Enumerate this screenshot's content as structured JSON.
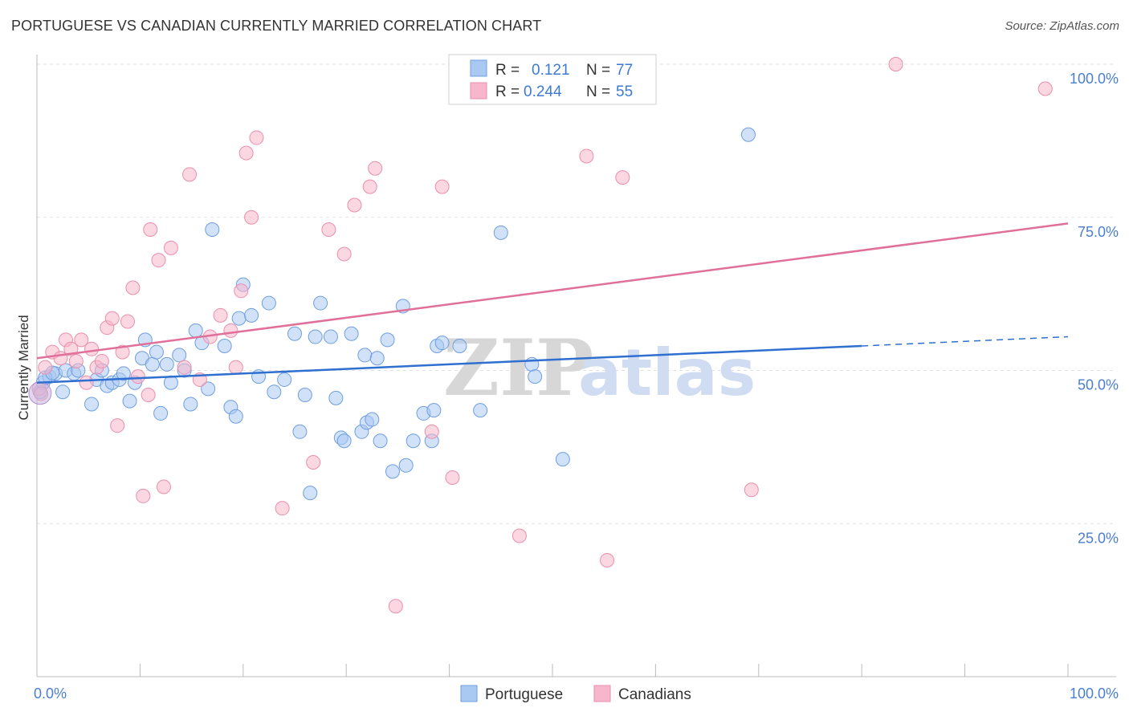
{
  "chart_data": {
    "type": "scatter",
    "title": "PORTUGUESE VS CANADIAN CURRENTLY MARRIED CORRELATION CHART",
    "source": "Source: ZipAtlas.com",
    "ylabel": "Currently Married",
    "xlabel": "",
    "xlim": [
      0,
      100
    ],
    "ylim": [
      0,
      100
    ],
    "x_tick_labels": [
      "0.0%",
      "100.0%"
    ],
    "y_tick_labels": [
      "25.0%",
      "50.0%",
      "75.0%",
      "100.0%"
    ],
    "y_ticks": [
      25,
      50,
      75,
      100
    ],
    "grid": true,
    "watermark": {
      "zip": "ZIP",
      "atlas": "atlas"
    },
    "legend": {
      "rows": [
        {
          "r_label": "R =",
          "r_value": "0.121",
          "n_label": "N =",
          "n_value": "77",
          "color": "#a9c8f2"
        },
        {
          "r_label": "R =",
          "r_value": "0.244",
          "n_label": "N =",
          "n_value": "55",
          "color": "#f7b6cb"
        }
      ]
    },
    "series": [
      {
        "name": "Portuguese",
        "color": "#a9c8f2",
        "edge": "#6f9fe0",
        "trend": {
          "x": [
            0,
            80
          ],
          "y": [
            48.0,
            54.0
          ],
          "dash_to": [
            100,
            55.5
          ],
          "color": "#2f6fd0"
        },
        "points": [
          [
            0.3,
            46.5
          ],
          [
            0.6,
            48
          ],
          [
            1.2,
            49
          ],
          [
            1.8,
            49.5
          ],
          [
            2.5,
            46.5
          ],
          [
            2.8,
            50
          ],
          [
            3.6,
            49.5
          ],
          [
            4,
            50
          ],
          [
            5.3,
            44.5
          ],
          [
            5.8,
            48.5
          ],
          [
            6.3,
            50
          ],
          [
            6.8,
            47.5
          ],
          [
            7.3,
            48
          ],
          [
            8,
            48.5
          ],
          [
            8.4,
            49.5
          ],
          [
            9,
            45
          ],
          [
            9.5,
            48
          ],
          [
            10.2,
            52
          ],
          [
            10.5,
            55
          ],
          [
            11.2,
            51
          ],
          [
            11.6,
            53
          ],
          [
            12,
            43
          ],
          [
            12.6,
            51
          ],
          [
            13,
            48
          ],
          [
            13.8,
            52.5
          ],
          [
            14.3,
            50
          ],
          [
            14.9,
            44.5
          ],
          [
            15.4,
            56.5
          ],
          [
            16,
            54.5
          ],
          [
            16.6,
            47
          ],
          [
            17,
            73
          ],
          [
            18.2,
            54
          ],
          [
            18.8,
            44
          ],
          [
            19.3,
            42.5
          ],
          [
            19.6,
            58.5
          ],
          [
            20,
            64
          ],
          [
            20.8,
            59
          ],
          [
            21.5,
            49
          ],
          [
            22.5,
            61
          ],
          [
            23,
            46.5
          ],
          [
            24,
            48.5
          ],
          [
            25,
            56
          ],
          [
            25.5,
            40
          ],
          [
            26,
            46
          ],
          [
            27,
            55.5
          ],
          [
            27.5,
            61
          ],
          [
            28.5,
            55.5
          ],
          [
            29,
            45.5
          ],
          [
            29.5,
            39
          ],
          [
            29.8,
            38.5
          ],
          [
            30.5,
            56
          ],
          [
            31.5,
            40
          ],
          [
            31.8,
            52.5
          ],
          [
            32,
            41.5
          ],
          [
            32.5,
            42
          ],
          [
            33,
            52
          ],
          [
            33.3,
            38.5
          ],
          [
            34,
            55
          ],
          [
            34.5,
            33.5
          ],
          [
            35.5,
            60.5
          ],
          [
            35.8,
            34.5
          ],
          [
            36.5,
            38.5
          ],
          [
            37.5,
            43
          ],
          [
            38.3,
            38.5
          ],
          [
            38.5,
            43.5
          ],
          [
            38.8,
            54
          ],
          [
            39.3,
            54.5
          ],
          [
            41,
            54
          ],
          [
            43,
            43.5
          ],
          [
            45,
            72.5
          ],
          [
            48,
            51
          ],
          [
            48.3,
            49
          ],
          [
            51,
            35.5
          ],
          [
            69,
            88.5
          ],
          [
            26.5,
            30
          ],
          [
            0.8,
            48.8
          ],
          [
            1.5,
            49.6
          ]
        ]
      },
      {
        "name": "Canadians",
        "color": "#f7b6cb",
        "edge": "#ea8fad",
        "trend": {
          "x": [
            0,
            100
          ],
          "y": [
            52.0,
            74.0
          ],
          "color": "#e0709a"
        },
        "points": [
          [
            0.2,
            47
          ],
          [
            0.8,
            50.5
          ],
          [
            1.5,
            53
          ],
          [
            2.3,
            52
          ],
          [
            2.8,
            55
          ],
          [
            3.3,
            53.5
          ],
          [
            3.8,
            51.5
          ],
          [
            4.3,
            55
          ],
          [
            4.8,
            48
          ],
          [
            5.3,
            53.5
          ],
          [
            5.8,
            50.5
          ],
          [
            6.3,
            51.5
          ],
          [
            6.8,
            57
          ],
          [
            7.3,
            58.5
          ],
          [
            7.8,
            41
          ],
          [
            8.3,
            53
          ],
          [
            8.8,
            58
          ],
          [
            9.3,
            63.5
          ],
          [
            9.8,
            49
          ],
          [
            10.3,
            29.5
          ],
          [
            10.8,
            46
          ],
          [
            11,
            73
          ],
          [
            11.8,
            68
          ],
          [
            12.3,
            31
          ],
          [
            13,
            70
          ],
          [
            14.3,
            50.5
          ],
          [
            14.8,
            82
          ],
          [
            15.8,
            48.5
          ],
          [
            16.8,
            55.5
          ],
          [
            17.8,
            59
          ],
          [
            18.8,
            56.5
          ],
          [
            19.3,
            50.5
          ],
          [
            19.8,
            63
          ],
          [
            20.3,
            85.5
          ],
          [
            20.8,
            75
          ],
          [
            21.3,
            88
          ],
          [
            23.8,
            27.5
          ],
          [
            26.8,
            35
          ],
          [
            28.3,
            73
          ],
          [
            29.8,
            69
          ],
          [
            30.8,
            77
          ],
          [
            32.3,
            80
          ],
          [
            32.8,
            83
          ],
          [
            34.8,
            11.5
          ],
          [
            38.3,
            40
          ],
          [
            39.3,
            80
          ],
          [
            40.3,
            32.5
          ],
          [
            46.8,
            23
          ],
          [
            53.3,
            85
          ],
          [
            55.3,
            19
          ],
          [
            56.8,
            81.5
          ],
          [
            69.3,
            30.5
          ],
          [
            83.3,
            100
          ],
          [
            97.8,
            96
          ],
          [
            0.4,
            46.2
          ]
        ]
      }
    ]
  }
}
